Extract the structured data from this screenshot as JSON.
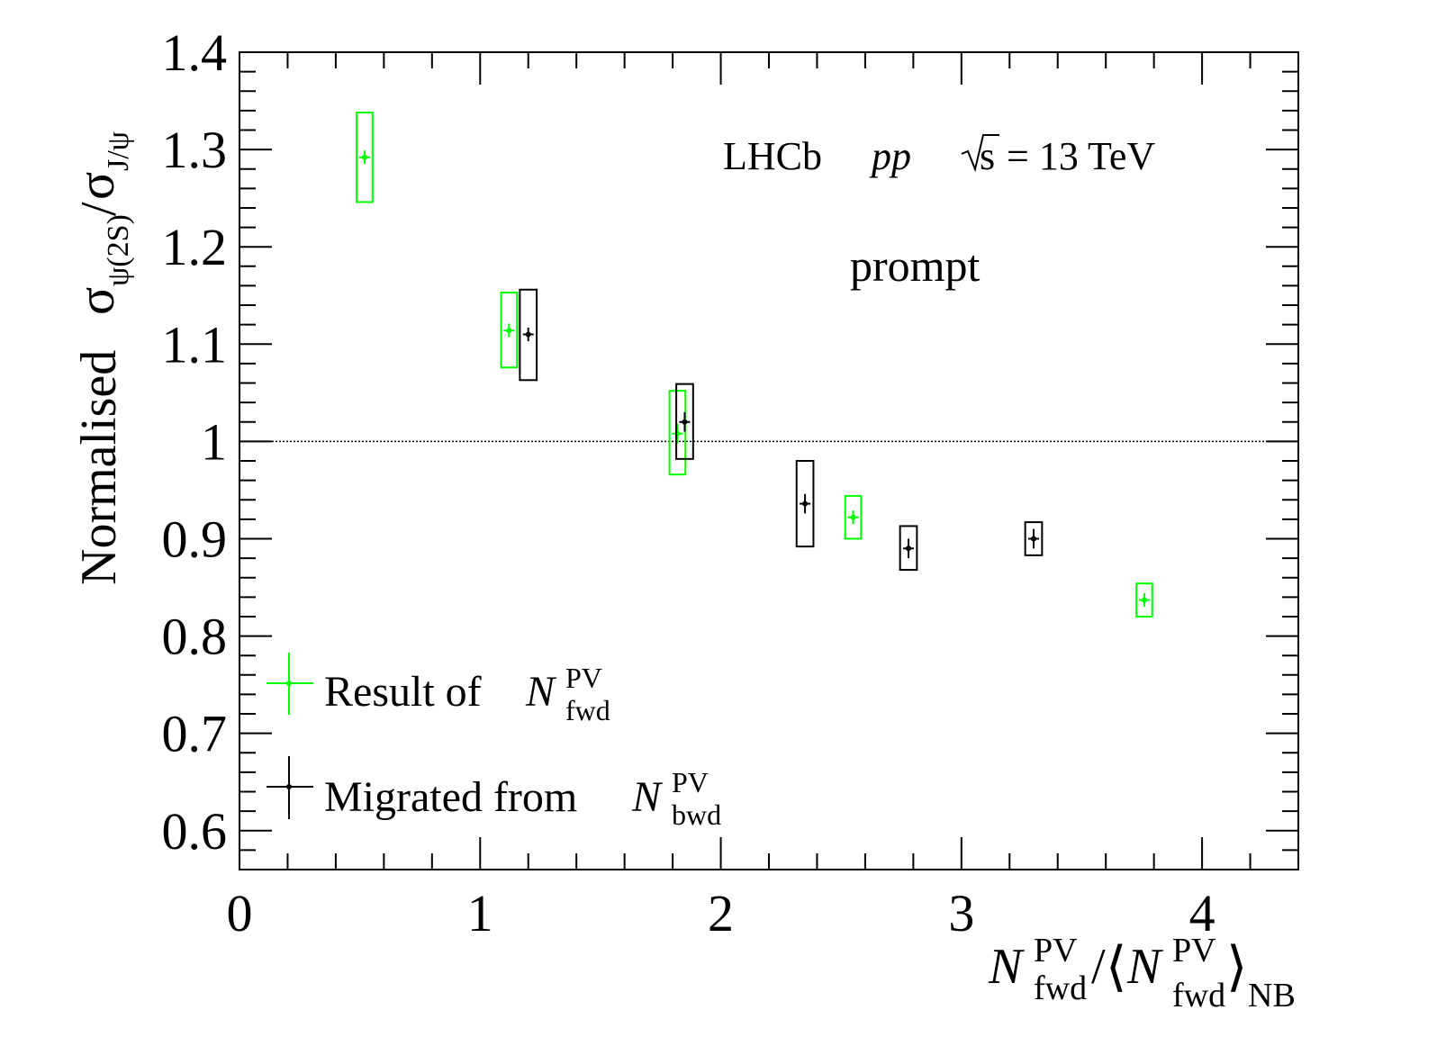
{
  "colors": {
    "fwd": "#00ff00",
    "bwd": "#000000",
    "frame": "#000000",
    "background": "#ffffff"
  },
  "annotations": {
    "experiment": "LHCb",
    "system": "pp",
    "energy_sqrt": "s",
    "energy_value": "= 13 TeV",
    "selection": "prompt"
  },
  "legend": {
    "fwd_label": "Result of",
    "bwd_label": "Migrated from",
    "N": "N",
    "PV": "PV",
    "fwd": "fwd",
    "bwd": "bwd"
  },
  "axes": {
    "y_label": {
      "normalised": "Normalised",
      "sigma": "σ",
      "psi2s": "ψ(2S)",
      "slash": "/",
      "jpsi": "J/ψ"
    },
    "x_label": {
      "N": "N",
      "PV": "PV",
      "fwd": "fwd",
      "slash": "/",
      "lang": "⟨",
      "rang": "⟩",
      "NB": "NB"
    }
  },
  "chart_data": {
    "type": "scatter",
    "xlabel": "N_fwd^PV/⟨N_fwd^PV⟩_NB",
    "ylabel": "Normalised σ_ψ(2S)/σ_J/ψ",
    "xlim": [
      0,
      4.4
    ],
    "ylim": [
      0.56,
      1.4
    ],
    "x_ticks": [
      0,
      1,
      2,
      3,
      4
    ],
    "y_ticks": [
      0.6,
      0.7,
      0.8,
      0.9,
      1,
      1.1,
      1.2,
      1.3,
      1.4
    ],
    "x_tick_labels": [
      "0",
      "1",
      "2",
      "3",
      "4"
    ],
    "y_tick_labels": [
      "0.6",
      "0.7",
      "0.8",
      "0.9",
      "1",
      "1.1",
      "1.2",
      "1.3",
      "1.4"
    ],
    "reference_line": 1.0,
    "legend_position": "bottom-left",
    "series": [
      {
        "name": "Result of N_fwd^PV",
        "color": "#00ff00",
        "points": [
          {
            "x": 0.52,
            "y": 1.292,
            "stat": 0.007,
            "syst_low": 1.246,
            "syst_high": 1.338,
            "box_halfwidth": 0.033
          },
          {
            "x": 1.12,
            "y": 1.114,
            "stat": 0.007,
            "syst_low": 1.076,
            "syst_high": 1.153,
            "box_halfwidth": 0.033
          },
          {
            "x": 1.82,
            "y": 1.008,
            "stat": 0.01,
            "syst_low": 0.966,
            "syst_high": 1.052,
            "box_halfwidth": 0.033
          },
          {
            "x": 2.55,
            "y": 0.922,
            "stat": 0.007,
            "syst_low": 0.9,
            "syst_high": 0.944,
            "box_halfwidth": 0.033
          },
          {
            "x": 3.76,
            "y": 0.837,
            "stat": 0.007,
            "syst_low": 0.82,
            "syst_high": 0.854,
            "box_halfwidth": 0.033
          }
        ]
      },
      {
        "name": "Migrated from N_bwd^PV",
        "color": "#000000",
        "points": [
          {
            "x": 1.2,
            "y": 1.11,
            "stat": 0.007,
            "syst_low": 1.063,
            "syst_high": 1.156,
            "box_halfwidth": 0.035
          },
          {
            "x": 1.85,
            "y": 1.02,
            "stat": 0.01,
            "syst_low": 0.982,
            "syst_high": 1.059,
            "box_halfwidth": 0.035
          },
          {
            "x": 2.35,
            "y": 0.936,
            "stat": 0.01,
            "syst_low": 0.892,
            "syst_high": 0.98,
            "box_halfwidth": 0.035
          },
          {
            "x": 2.78,
            "y": 0.89,
            "stat": 0.01,
            "syst_low": 0.868,
            "syst_high": 0.913,
            "box_halfwidth": 0.035
          },
          {
            "x": 3.3,
            "y": 0.9,
            "stat": 0.01,
            "syst_low": 0.883,
            "syst_high": 0.917,
            "box_halfwidth": 0.035
          }
        ]
      }
    ]
  }
}
